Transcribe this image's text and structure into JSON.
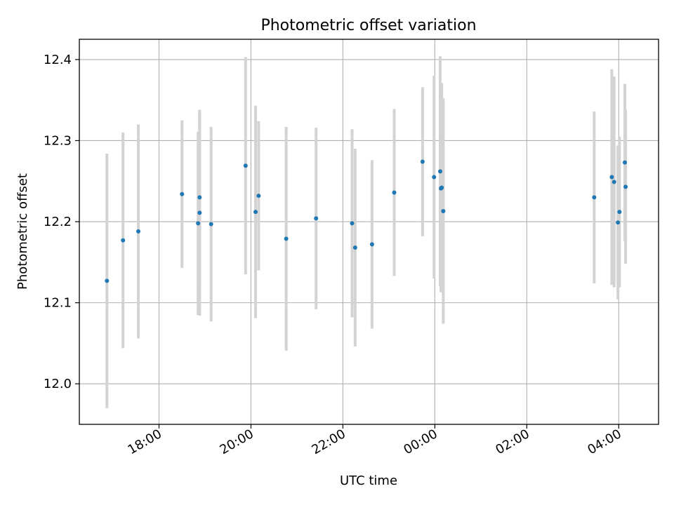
{
  "chart_data": {
    "type": "scatter",
    "title": "Photometric offset variation",
    "xlabel": "UTC time",
    "ylabel": "Photometric offset",
    "x_unit": "UTC time (HH:MM); points after 00:00 fall on the following day",
    "xlim": [
      "16:16",
      "04:52"
    ],
    "ylim": [
      11.95,
      12.425
    ],
    "x_ticks": [
      "18:00",
      "20:00",
      "22:00",
      "00:00",
      "02:00",
      "04:00"
    ],
    "y_ticks": [
      "12.0",
      "12.1",
      "12.2",
      "12.3",
      "12.4"
    ],
    "y_tick_values": [
      12.0,
      12.1,
      12.2,
      12.3,
      12.4
    ],
    "grid": true,
    "colors": {
      "point": "#1f77b4",
      "errorbar": "#d3d3d3",
      "grid": "#b0b0b0"
    },
    "series": [
      {
        "points": [
          {
            "x": "16:52",
            "y": 12.127,
            "err": 0.157
          },
          {
            "x": "17:13",
            "y": 12.177,
            "err": 0.133
          },
          {
            "x": "17:33",
            "y": 12.188,
            "err": 0.132
          },
          {
            "x": "18:30",
            "y": 12.234,
            "err": 0.091
          },
          {
            "x": "18:51",
            "y": 12.198,
            "err": 0.113
          },
          {
            "x": "18:53",
            "y": 12.211,
            "err": 0.127
          },
          {
            "x": "18:53",
            "y": 12.23,
            "err": 0.107
          },
          {
            "x": "19:08",
            "y": 12.197,
            "err": 0.12
          },
          {
            "x": "19:53",
            "y": 12.269,
            "err": 0.134
          },
          {
            "x": "20:06",
            "y": 12.212,
            "err": 0.131
          },
          {
            "x": "20:10",
            "y": 12.232,
            "err": 0.092
          },
          {
            "x": "20:46",
            "y": 12.179,
            "err": 0.138
          },
          {
            "x": "21:25",
            "y": 12.204,
            "err": 0.112
          },
          {
            "x": "22:12",
            "y": 12.198,
            "err": 0.116
          },
          {
            "x": "22:16",
            "y": 12.168,
            "err": 0.122
          },
          {
            "x": "22:38",
            "y": 12.172,
            "err": 0.104
          },
          {
            "x": "23:07",
            "y": 12.236,
            "err": 0.103
          },
          {
            "x": "23:44",
            "y": 12.274,
            "err": 0.092
          },
          {
            "x": "23:59",
            "y": 12.255,
            "err": 0.125
          },
          {
            "x": "00:07",
            "y": 12.262,
            "err": 0.142
          },
          {
            "x": "00:08",
            "y": 12.241,
            "err": 0.128
          },
          {
            "x": "00:09",
            "y": 12.242,
            "err": 0.129
          },
          {
            "x": "00:11",
            "y": 12.213,
            "err": 0.139
          },
          {
            "x": "03:28",
            "y": 12.23,
            "err": 0.106
          },
          {
            "x": "03:51",
            "y": 12.255,
            "err": 0.133
          },
          {
            "x": "03:54",
            "y": 12.249,
            "err": 0.13
          },
          {
            "x": "03:59",
            "y": 12.199,
            "err": 0.095
          },
          {
            "x": "04:01",
            "y": 12.212,
            "err": 0.093
          },
          {
            "x": "04:08",
            "y": 12.273,
            "err": 0.097
          },
          {
            "x": "04:09",
            "y": 12.243,
            "err": 0.095
          }
        ]
      }
    ]
  }
}
